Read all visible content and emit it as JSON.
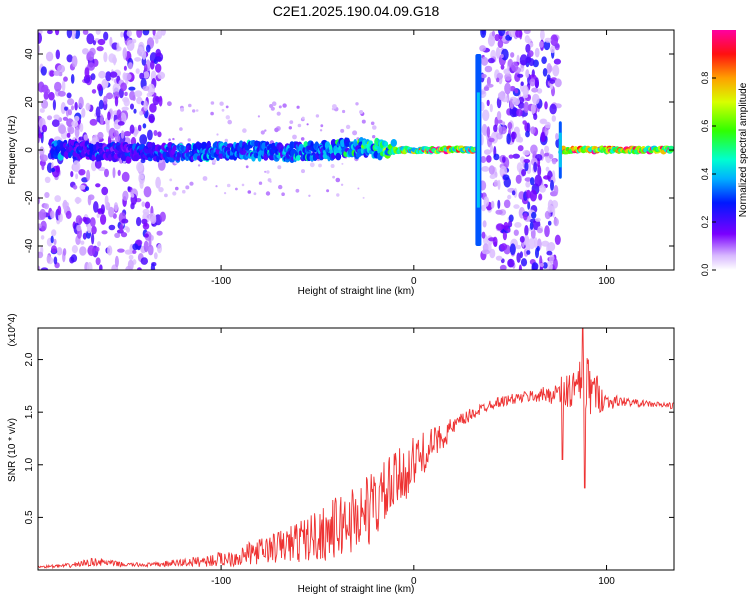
{
  "title": "C2E1.2025.190.04.09.G18",
  "chart_data": [
    {
      "type": "heatmap",
      "xlabel": "Height of straight line (km)",
      "ylabel": "Frequency (Hz)",
      "xlim": [
        -195,
        135
      ],
      "ylim": [
        -50,
        50
      ],
      "xticks": [
        -100,
        0,
        100
      ],
      "xtick_labels": [
        "-100",
        "0",
        "100"
      ],
      "yticks": [
        -40,
        -20,
        0,
        20,
        40
      ],
      "ytick_labels": [
        "-40",
        "-20",
        "0",
        "20",
        "40"
      ],
      "colorbar": {
        "label": "Normalized spectral amplitude",
        "range": [
          0,
          1
        ],
        "ticks": [
          0.0,
          0.2,
          0.4,
          0.6,
          0.8
        ],
        "tick_labels": [
          "0.0",
          "0.2",
          "0.4",
          "0.6",
          "0.8"
        ],
        "colormap": "rainbow (white-violet-blue-cyan-green-yellow-red-magenta)"
      },
      "features": {
        "carrier_line": [
          {
            "x": -180,
            "f": 0,
            "amp": 0.35
          },
          {
            "x": -150,
            "f": -1,
            "amp": 0.3
          },
          {
            "x": -120,
            "f": -1,
            "amp": 0.4
          },
          {
            "x": -90,
            "f": 0,
            "amp": 0.45
          },
          {
            "x": -60,
            "f": -1,
            "amp": 0.45
          },
          {
            "x": -30,
            "f": 1,
            "amp": 0.5
          },
          {
            "x": -10,
            "f": 0,
            "amp": 0.75
          },
          {
            "x": 10,
            "f": 0,
            "amp": 0.9
          },
          {
            "x": 30,
            "f": 0,
            "amp": 0.9
          },
          {
            "x": 80,
            "f": 0,
            "amp": 0.95
          },
          {
            "x": 110,
            "f": 0,
            "amp": 0.95
          },
          {
            "x": 130,
            "f": 0,
            "amp": 0.95
          }
        ],
        "noise_bands": [
          [
            -195,
            -130
          ],
          [
            35,
            75
          ]
        ]
      }
    },
    {
      "type": "line",
      "xlabel": "Height of straight line (km)",
      "ylabel": "SNR (10 * v/v)",
      "y_multiplier": "(x10^4)",
      "xlim": [
        -195,
        135
      ],
      "ylim": [
        0,
        2.3
      ],
      "xticks": [
        -100,
        0,
        100
      ],
      "xtick_labels": [
        "-100",
        "0",
        "100"
      ],
      "yticks": [
        0.5,
        1.0,
        1.5,
        2.0
      ],
      "ytick_labels": [
        "0.5",
        "1.0",
        "1.5",
        "2.0"
      ],
      "color": "#ee3333",
      "series": [
        {
          "x": [
            -195,
            -180,
            -165,
            -150,
            -135,
            -120,
            -105,
            -90,
            -80,
            -70,
            -60,
            -50,
            -40,
            -30,
            -20,
            -10,
            0,
            10,
            20,
            30,
            40,
            50,
            60,
            70,
            80,
            90,
            100,
            110,
            120,
            135
          ],
          "y": [
            0.03,
            0.04,
            0.08,
            0.05,
            0.05,
            0.07,
            0.09,
            0.13,
            0.18,
            0.22,
            0.27,
            0.33,
            0.4,
            0.5,
            0.62,
            0.82,
            1.02,
            1.2,
            1.35,
            1.48,
            1.58,
            1.62,
            1.65,
            1.67,
            1.7,
            1.75,
            1.6,
            1.6,
            1.58,
            1.56
          ],
          "noise": [
            0.01,
            0.02,
            0.04,
            0.02,
            0.02,
            0.04,
            0.06,
            0.1,
            0.12,
            0.16,
            0.2,
            0.25,
            0.3,
            0.35,
            0.35,
            0.3,
            0.25,
            0.15,
            0.1,
            0.06,
            0.05,
            0.05,
            0.06,
            0.08,
            0.2,
            0.3,
            0.08,
            0.04,
            0.03,
            0.03
          ]
        }
      ]
    }
  ]
}
